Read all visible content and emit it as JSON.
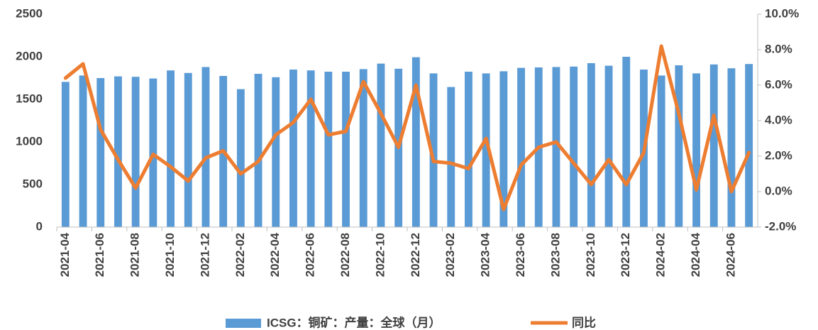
{
  "chart_data": {
    "type": "bar_line",
    "categories": [
      "2021-04",
      null,
      "2021-06",
      null,
      "2021-08",
      null,
      "2021-10",
      null,
      "2021-12",
      null,
      "2022-02",
      null,
      "2022-04",
      null,
      "2022-06",
      null,
      "2022-08",
      null,
      "2022-10",
      null,
      "2022-12",
      null,
      "2023-02",
      null,
      "2023-04",
      null,
      "2023-06",
      null,
      "2023-08",
      null,
      "2023-10",
      null,
      "2023-12",
      null,
      "2024-02",
      null,
      "2024-04",
      null,
      "2024-06",
      null
    ],
    "series": [
      {
        "name": "ICSG：铜矿：产量：全球（月）",
        "type": "bar",
        "color": "#5b9bd5",
        "values": [
          1705,
          1780,
          1750,
          1770,
          1765,
          1745,
          1840,
          1810,
          1880,
          1775,
          1620,
          1800,
          1760,
          1850,
          1840,
          1825,
          1825,
          1855,
          1920,
          1860,
          1995,
          1805,
          1645,
          1825,
          1805,
          1830,
          1870,
          1875,
          1880,
          1885,
          1925,
          1895,
          2000,
          1850,
          1780,
          1900,
          1805,
          1910,
          1865,
          1915
        ]
      },
      {
        "name": "同比",
        "type": "line",
        "axis": "y2",
        "color": "#ed7d31",
        "values": [
          6.4,
          7.2,
          3.5,
          1.8,
          0.2,
          2.1,
          1.4,
          0.6,
          1.9,
          2.3,
          1.0,
          1.7,
          3.2,
          3.9,
          5.2,
          3.2,
          3.4,
          6.2,
          4.4,
          2.5,
          6.0,
          1.7,
          1.6,
          1.3,
          3.0,
          -1.0,
          1.5,
          2.5,
          2.8,
          1.6,
          0.4,
          1.8,
          0.4,
          2.2,
          8.2,
          4.4,
          0.1,
          4.3,
          0.0,
          2.2
        ]
      }
    ],
    "ylim": [
      0,
      2500
    ],
    "yticks": [
      0,
      500,
      1000,
      1500,
      2000,
      2500
    ],
    "y2lim": [
      -2,
      10
    ],
    "y2ticks": [
      {
        "value": -2,
        "label": "-2.0%"
      },
      {
        "value": 0,
        "label": "0.0%"
      },
      {
        "value": 2,
        "label": "2.0%"
      },
      {
        "value": 4,
        "label": "4.0%"
      },
      {
        "value": 6,
        "label": "6.0%"
      },
      {
        "value": 8,
        "label": "8.0%"
      },
      {
        "value": 10,
        "label": "10.0%"
      }
    ],
    "legend": "bottom"
  }
}
